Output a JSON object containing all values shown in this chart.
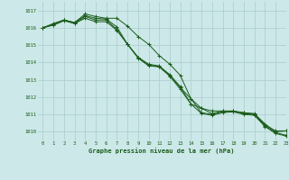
{
  "title": "Graphe pression niveau de la mer (hPa)",
  "bg_color": "#cce8e8",
  "grid_color": "#aacccc",
  "line_color": "#1a5c1a",
  "text_color": "#1a5c1a",
  "xlim": [
    -0.5,
    23
  ],
  "ylim": [
    1009.5,
    1017.5
  ],
  "yticks": [
    1010,
    1011,
    1012,
    1013,
    1014,
    1015,
    1016,
    1017
  ],
  "xticks": [
    0,
    1,
    2,
    3,
    4,
    5,
    6,
    7,
    8,
    9,
    10,
    11,
    12,
    13,
    14,
    15,
    16,
    17,
    18,
    19,
    20,
    21,
    22,
    23
  ],
  "series": [
    [
      1016.0,
      1016.25,
      1016.45,
      1016.3,
      1016.7,
      1016.55,
      1016.5,
      1016.05,
      1015.05,
      1014.3,
      1013.9,
      1013.8,
      1013.3,
      1012.6,
      1011.6,
      1011.35,
      1011.05,
      1011.2,
      1011.2,
      1011.1,
      1011.05,
      1010.45,
      1010.0,
      1010.05
    ],
    [
      1016.0,
      1016.2,
      1016.45,
      1016.25,
      1016.65,
      1016.45,
      1016.45,
      1015.9,
      1015.05,
      1014.3,
      1013.85,
      1013.75,
      1013.25,
      1012.55,
      1011.9,
      1011.1,
      1011.0,
      1011.15,
      1011.2,
      1011.05,
      1011.0,
      1010.35,
      1009.95,
      1009.8
    ],
    [
      1016.0,
      1016.15,
      1016.4,
      1016.25,
      1016.55,
      1016.35,
      1016.35,
      1015.85,
      1015.05,
      1014.25,
      1013.8,
      1013.75,
      1013.2,
      1012.45,
      1011.6,
      1011.05,
      1010.95,
      1011.1,
      1011.15,
      1011.0,
      1010.95,
      1010.3,
      1009.9,
      1009.75
    ],
    [
      1016.0,
      1016.2,
      1016.45,
      1016.3,
      1016.8,
      1016.65,
      1016.55,
      1016.55,
      1016.1,
      1015.5,
      1015.05,
      1014.4,
      1013.9,
      1013.25,
      1011.9,
      1011.35,
      1011.2,
      1011.2,
      1011.15,
      1011.1,
      1011.0,
      1010.4,
      1010.05,
      1010.05
    ]
  ]
}
